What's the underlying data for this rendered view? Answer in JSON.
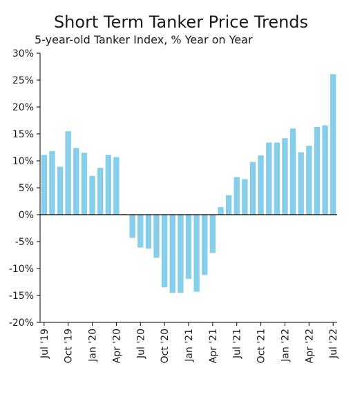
{
  "chart_data": {
    "type": "bar",
    "title": "Short Term Tanker Price Trends",
    "subtitle": "5-year-old Tanker Index, % Year on Year",
    "xlabel": "",
    "ylabel": "",
    "ylim": [
      -20,
      30
    ],
    "y_ticks": [
      "30%",
      "25%",
      "20%",
      "15%",
      "10%",
      "5%",
      "0%",
      "-5%",
      "-10%",
      "-15%",
      "-20%"
    ],
    "y_tick_values": [
      30,
      25,
      20,
      15,
      10,
      5,
      0,
      -5,
      -10,
      -15,
      -20
    ],
    "x_tick_labels": [
      {
        "label": "Jul '19",
        "index": 0
      },
      {
        "label": "Oct '19",
        "index": 3
      },
      {
        "label": "Jan '20",
        "index": 6
      },
      {
        "label": "Apr '20",
        "index": 9
      },
      {
        "label": "Jul '20",
        "index": 12
      },
      {
        "label": "Oct '20",
        "index": 15
      },
      {
        "label": "Jan '21",
        "index": 18
      },
      {
        "label": "Apr '21",
        "index": 21
      },
      {
        "label": "Jul '21",
        "index": 24
      },
      {
        "label": "Oct '21",
        "index": 27
      },
      {
        "label": "Jan '22",
        "index": 30
      },
      {
        "label": "Apr '22",
        "index": 33
      },
      {
        "label": "Jul '22",
        "index": 36
      }
    ],
    "categories": [
      "Jul 2019",
      "Aug 2019",
      "Sep 2019",
      "Oct 2019",
      "Nov 2019",
      "Dec 2019",
      "Jan 2020",
      "Feb 2020",
      "Mar 2020",
      "Apr 2020",
      "May 2020",
      "Jun 2020",
      "Jul 2020",
      "Aug 2020",
      "Sep 2020",
      "Oct 2020",
      "Nov 2020",
      "Dec 2020",
      "Jan 2021",
      "Feb 2021",
      "Mar 2021",
      "Apr 2021",
      "May 2021",
      "Jun 2021",
      "Jul 2021",
      "Aug 2021",
      "Sep 2021",
      "Oct 2021",
      "Nov 2021",
      "Dec 2021",
      "Jan 2022",
      "Feb 2022",
      "Mar 2022",
      "Apr 2022",
      "May 2022",
      "Jun 2022",
      "Jul 2022"
    ],
    "values": [
      11.1,
      11.8,
      8.9,
      15.5,
      12.4,
      11.5,
      7.2,
      8.7,
      11.1,
      10.7,
      0.1,
      -4.3,
      -6.1,
      -6.3,
      -8.0,
      -13.5,
      -14.5,
      -14.5,
      -11.9,
      -14.3,
      -11.2,
      -7.1,
      1.4,
      3.6,
      7.0,
      6.6,
      9.8,
      11.0,
      13.4,
      13.4,
      14.2,
      16.0,
      11.6,
      12.8,
      16.3,
      16.6,
      26.1
    ],
    "bar_color": "#87ceeb",
    "grid": false,
    "legend": "none"
  }
}
